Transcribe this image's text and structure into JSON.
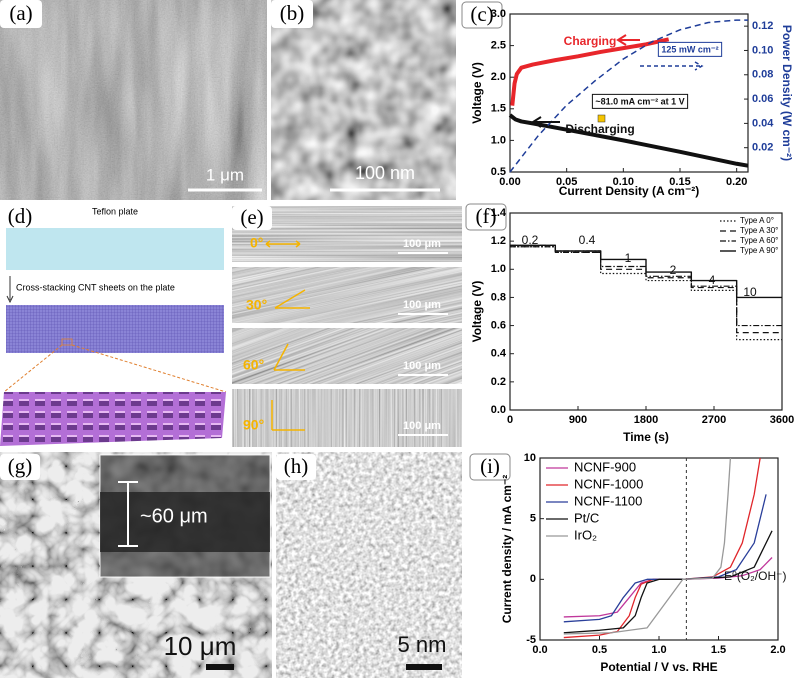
{
  "panel_labels": [
    "(a)",
    "(b)",
    "(c)",
    "(d)",
    "(e)",
    "(f)",
    "(g)",
    "(h)",
    "(i)"
  ],
  "micrographs": {
    "a": {
      "scale_bar": "1 μm"
    },
    "b": {
      "scale_bar": "100 nm"
    },
    "g": {
      "scale_bar": "10 μm",
      "inset_label": "~60 μm"
    },
    "h": {
      "scale_bar": "5 nm"
    }
  },
  "schematic_d": {
    "step_1": "Teflon plate",
    "step_2": "Cross-stacking CNT sheets on the plate"
  },
  "sem_e": {
    "rows": [
      {
        "angle": "0°",
        "scale_bar": "100 μm"
      },
      {
        "angle": "30°",
        "scale_bar": "100 μm"
      },
      {
        "angle": "60°",
        "scale_bar": "100 μm"
      },
      {
        "angle": "90°",
        "scale_bar": "100 μm"
      }
    ]
  },
  "chart_data": [
    {
      "type": "line",
      "xlabel": "Current Density (A cm⁻²)",
      "ylabel": "Voltage (V)",
      "y2label": "Power Density (W cm⁻²)",
      "xlim": [
        0,
        0.21
      ],
      "xticks": [
        {
          "value": 0,
          "label": "0.00"
        },
        0.05,
        {
          "value": 0.1,
          "label": "0.10"
        },
        0.15,
        {
          "value": 0.2,
          "label": "0.20"
        }
      ],
      "ylim": [
        0.5,
        3.0
      ],
      "yticks": [
        0.5,
        {
          "value": 1,
          "label": "1.0"
        },
        1.5,
        {
          "value": 2,
          "label": "2.0"
        },
        2.5,
        {
          "value": 3,
          "label": "3.0"
        }
      ],
      "y2lim": [
        0,
        0.13
      ],
      "y2ticks": [
        0.02,
        0.04,
        0.06,
        0.08,
        {
          "value": 0.1,
          "label": "0.10"
        },
        0.12
      ],
      "series": [
        {
          "name": "Charging",
          "color": "#e8262b",
          "line_width": 4,
          "x": [
            0.002,
            0.004,
            0.006,
            0.01,
            0.02,
            0.04,
            0.06,
            0.08,
            0.1,
            0.12,
            0.14
          ],
          "values": [
            1.55,
            1.9,
            2.05,
            2.15,
            2.2,
            2.27,
            2.33,
            2.4,
            2.46,
            2.52,
            2.6
          ]
        },
        {
          "name": "Discharging",
          "color": "#111111",
          "line_width": 4,
          "x": [
            0,
            0.005,
            0.01,
            0.02,
            0.05,
            0.1,
            0.15,
            0.2,
            0.21
          ],
          "values": [
            1.4,
            1.33,
            1.3,
            1.27,
            1.17,
            1.0,
            0.82,
            0.63,
            0.6
          ]
        },
        {
          "color": "#1f3d99",
          "line_width": 1.5,
          "dash": "dashed",
          "axis": "y2",
          "x": [
            0,
            0.025,
            0.05,
            0.075,
            0.1,
            0.125,
            0.15,
            0.175,
            0.2,
            0.21
          ],
          "values": [
            0,
            0.03,
            0.055,
            0.075,
            0.093,
            0.107,
            0.117,
            0.123,
            0.125,
            0.125
          ]
        }
      ],
      "annotations": [
        "125 mW cm⁻²",
        "~81.0 mA cm⁻² at 1 V"
      ]
    },
    {
      "type": "line",
      "xlabel": "Time (s)",
      "ylabel": "Voltage (V)",
      "xlim": [
        0,
        3600
      ],
      "xticks": [
        0,
        900,
        1800,
        2700,
        3600
      ],
      "ylim": [
        0,
        1.4
      ],
      "yticks": [
        {
          "value": 0,
          "label": "0.0"
        },
        0.2,
        0.4,
        0.6,
        0.8,
        {
          "value": 1,
          "label": "1.0"
        },
        1.2,
        1.4
      ],
      "legend": "upper right",
      "series": [
        {
          "name": "Type A 0°",
          "color": "#111111",
          "line_width": 1.2,
          "dash": "dotted",
          "x": [
            0,
            600,
            600,
            1200,
            1200,
            1800,
            1800,
            2400,
            2400,
            3000,
            3000,
            3600
          ],
          "values": [
            1.16,
            1.16,
            1.12,
            1.12,
            0.97,
            0.97,
            0.92,
            0.92,
            0.85,
            0.85,
            0.5,
            0.5
          ]
        },
        {
          "name": "Type A 30°",
          "color": "#111111",
          "line_width": 1.2,
          "dash": "dashed",
          "x": [
            0,
            600,
            600,
            1200,
            1200,
            1800,
            1800,
            2400,
            2400,
            3000,
            3000,
            3600
          ],
          "values": [
            1.17,
            1.17,
            1.12,
            1.12,
            1.0,
            1.0,
            0.94,
            0.94,
            0.87,
            0.87,
            0.55,
            0.55
          ]
        },
        {
          "name": "Type A 60°",
          "color": "#111111",
          "line_width": 1.2,
          "dash": "dashdot",
          "x": [
            0,
            600,
            600,
            1200,
            1200,
            1800,
            1800,
            2400,
            2400,
            3000,
            3000,
            3600
          ],
          "values": [
            1.16,
            1.16,
            1.13,
            1.13,
            1.02,
            1.02,
            0.95,
            0.95,
            0.88,
            0.88,
            0.6,
            0.6
          ]
        },
        {
          "name": "Type A 90°",
          "color": "#111111",
          "line_width": 1.4,
          "x": [
            0,
            600,
            600,
            1200,
            1200,
            1800,
            1800,
            2400,
            2400,
            3000,
            3000,
            3600
          ],
          "values": [
            1.17,
            1.17,
            1.13,
            1.13,
            1.07,
            1.07,
            0.98,
            0.98,
            0.92,
            0.92,
            0.8,
            0.8
          ]
        }
      ],
      "annotations": [
        "0.2",
        "0.4",
        "1",
        "2",
        "4",
        "10"
      ]
    },
    {
      "type": "line",
      "xlabel": "Potential / V vs. RHE",
      "ylabel": "Current density / mA cm⁻²",
      "xlim": [
        0,
        2.0
      ],
      "xticks": [
        {
          "value": 0,
          "label": "0.0"
        },
        0.5,
        {
          "value": 1,
          "label": "1.0"
        },
        1.5,
        {
          "value": 2,
          "label": "2.0"
        }
      ],
      "ylim": [
        -5,
        10
      ],
      "yticks": [
        -5,
        0,
        5,
        10
      ],
      "legend": "upper left",
      "vline": 1.23,
      "annotations": [
        "E⁰(O₂/OH⁻)"
      ],
      "series": [
        {
          "name": "NCNF-900",
          "color": "#c0379b",
          "line_width": 1.3,
          "x": [
            0.2,
            0.5,
            0.65,
            0.75,
            0.85,
            0.95,
            1.2,
            1.5,
            1.7,
            1.85,
            1.95
          ],
          "values": [
            -3.1,
            -3.0,
            -2.7,
            -1.5,
            -0.3,
            0,
            0,
            0.1,
            0.3,
            0.8,
            1.8
          ]
        },
        {
          "name": "NCNF-1000",
          "color": "#e0262b",
          "line_width": 1.3,
          "x": [
            0.2,
            0.5,
            0.65,
            0.75,
            0.8,
            0.85,
            0.95,
            1.2,
            1.45,
            1.6,
            1.7,
            1.8,
            1.85
          ],
          "values": [
            -4.8,
            -4.6,
            -4.3,
            -3,
            -1.5,
            -0.4,
            0,
            0,
            0.2,
            1,
            3,
            7,
            10
          ]
        },
        {
          "name": "NCNF-1100",
          "color": "#2a3f9a",
          "line_width": 1.3,
          "x": [
            0.2,
            0.5,
            0.6,
            0.7,
            0.8,
            0.9,
            1.2,
            1.5,
            1.65,
            1.8,
            1.9
          ],
          "values": [
            -3.5,
            -3.3,
            -3,
            -1.5,
            -0.3,
            0,
            0,
            0.2,
            0.8,
            3,
            7
          ]
        },
        {
          "name": "Pt/C",
          "color": "#111111",
          "line_width": 1.3,
          "x": [
            0.2,
            0.5,
            0.7,
            0.8,
            0.85,
            0.9,
            1.0,
            1.2,
            1.6,
            1.8,
            1.95
          ],
          "values": [
            -4.4,
            -4.2,
            -4,
            -3,
            -1.5,
            -0.3,
            0,
            0,
            0.2,
            1,
            4
          ]
        },
        {
          "name": "IrO₂",
          "color": "#999999",
          "line_width": 1.3,
          "x": [
            0.2,
            0.6,
            0.9,
            1.2,
            1.45,
            1.52,
            1.55,
            1.58,
            1.6
          ],
          "values": [
            -4.5,
            -4.4,
            -4,
            0,
            0.1,
            1,
            3,
            7,
            10
          ]
        }
      ]
    }
  ]
}
